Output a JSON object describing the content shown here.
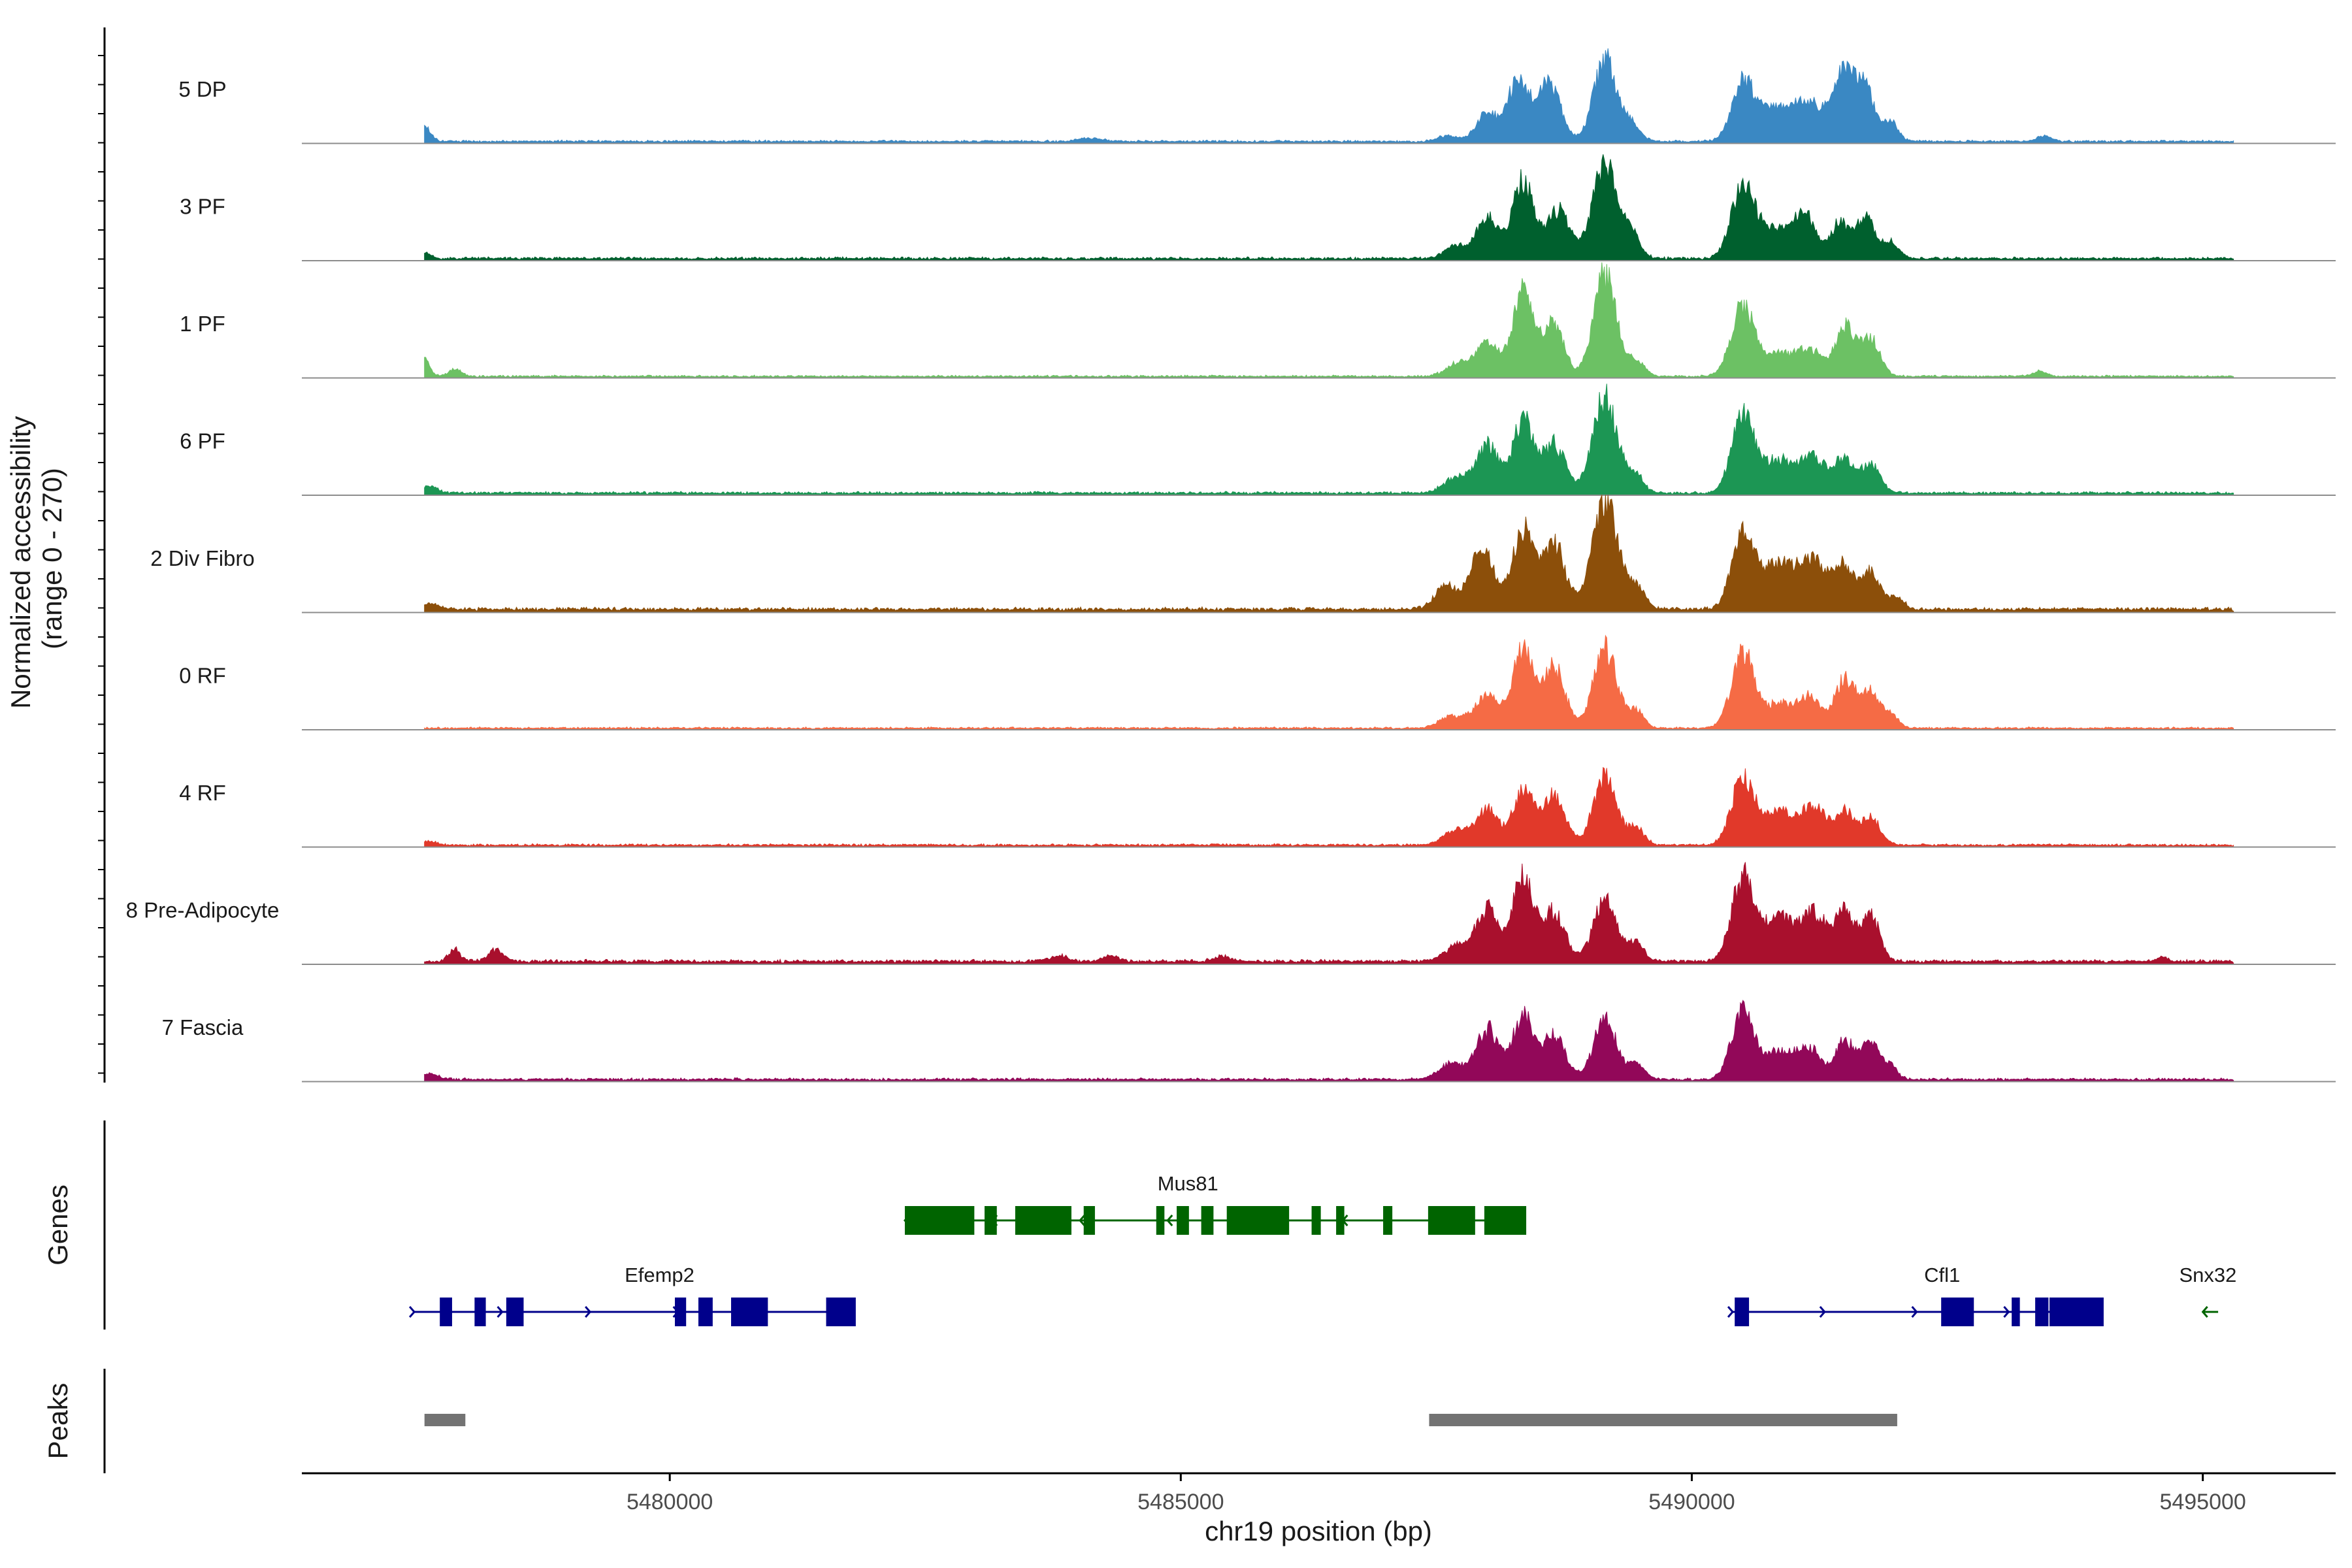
{
  "chart_data": {
    "type": "area",
    "title": "",
    "xlabel": "chr19 position (bp)",
    "ylabel": "Normalized accessibility\n(range 0 - 270)",
    "ylabel_lines": [
      "Normalized accessibility",
      "(range 0 - 270)"
    ],
    "ylim": [
      0,
      270
    ],
    "xlim": [
      5476400,
      5496300
    ],
    "xticks": [
      5480000,
      5485000,
      5490000,
      5495000
    ],
    "xtick_labels": [
      "5480000",
      "5485000",
      "5490000",
      "5495000"
    ],
    "series": [
      {
        "name": "5 DP",
        "color": "#3A88C3",
        "base": 4,
        "noise": [
          5477600,
          5495300
        ],
        "noise_amp": 3,
        "peaks": [
          [
            5477600,
            38,
            60
          ],
          [
            5484100,
            8,
            120
          ],
          [
            5487600,
            14,
            90
          ],
          [
            5488000,
            70,
            110
          ],
          [
            5488300,
            150,
            100
          ],
          [
            5488600,
            145,
            110
          ],
          [
            5489150,
            200,
            110
          ],
          [
            5489400,
            45,
            90
          ],
          [
            5490500,
            140,
            110
          ],
          [
            5490800,
            75,
            160
          ],
          [
            5491150,
            90,
            160
          ],
          [
            5491500,
            160,
            110
          ],
          [
            5491700,
            120,
            90
          ],
          [
            5491950,
            50,
            70
          ],
          [
            5493450,
            14,
            70
          ]
        ]
      },
      {
        "name": "3 PF",
        "color": "#00602E",
        "base": 4,
        "noise": [
          5477600,
          5495300
        ],
        "noise_amp": 4,
        "peaks": [
          [
            5477600,
            14,
            60
          ],
          [
            5487700,
            30,
            110
          ],
          [
            5488000,
            105,
            100
          ],
          [
            5488350,
            190,
            110
          ],
          [
            5488700,
            120,
            110
          ],
          [
            5489150,
            230,
            120
          ],
          [
            5489400,
            60,
            90
          ],
          [
            5490500,
            185,
            110
          ],
          [
            5490800,
            70,
            140
          ],
          [
            5491100,
            110,
            110
          ],
          [
            5491450,
            90,
            90
          ],
          [
            5491700,
            100,
            90
          ],
          [
            5491950,
            40,
            80
          ]
        ]
      },
      {
        "name": "1 PF",
        "color": "#6CC164",
        "base": 3,
        "noise": [
          5477600,
          5495300
        ],
        "noise_amp": 3,
        "peaks": [
          [
            5477600,
            42,
            50
          ],
          [
            5477900,
            18,
            60
          ],
          [
            5487700,
            30,
            110
          ],
          [
            5488000,
            80,
            120
          ],
          [
            5488350,
            210,
            100
          ],
          [
            5488650,
            130,
            100
          ],
          [
            5489150,
            250,
            110
          ],
          [
            5489450,
            40,
            80
          ],
          [
            5490500,
            180,
            110
          ],
          [
            5490850,
            55,
            130
          ],
          [
            5491150,
            65,
            120
          ],
          [
            5491500,
            120,
            100
          ],
          [
            5491750,
            90,
            90
          ],
          [
            5493400,
            12,
            70
          ]
        ]
      },
      {
        "name": "6 PF",
        "color": "#1C9654",
        "base": 4,
        "noise": [
          5477600,
          5495300
        ],
        "noise_amp": 4,
        "peaks": [
          [
            5477650,
            18,
            80
          ],
          [
            5487700,
            38,
            120
          ],
          [
            5488000,
            120,
            110
          ],
          [
            5488350,
            180,
            100
          ],
          [
            5488650,
            120,
            110
          ],
          [
            5489150,
            235,
            120
          ],
          [
            5489450,
            45,
            80
          ],
          [
            5490500,
            185,
            110
          ],
          [
            5490850,
            80,
            160
          ],
          [
            5491200,
            85,
            130
          ],
          [
            5491500,
            80,
            90
          ],
          [
            5491750,
            70,
            90
          ]
        ]
      },
      {
        "name": "2 Div Fibro",
        "color": "#8C4F0A",
        "base": 7,
        "noise": [
          5477600,
          5495300
        ],
        "noise_amp": 4,
        "peaks": [
          [
            5477650,
            14,
            80
          ],
          [
            5487600,
            60,
            110
          ],
          [
            5487950,
            155,
            110
          ],
          [
            5488350,
            190,
            110
          ],
          [
            5488650,
            160,
            110
          ],
          [
            5489150,
            270,
            120
          ],
          [
            5489450,
            55,
            90
          ],
          [
            5490500,
            180,
            110
          ],
          [
            5490850,
            110,
            160
          ],
          [
            5491200,
            115,
            140
          ],
          [
            5491500,
            100,
            90
          ],
          [
            5491750,
            95,
            90
          ],
          [
            5492000,
            30,
            70
          ]
        ]
      },
      {
        "name": "0 RF",
        "color": "#F56B45",
        "base": 3,
        "noise": [
          5477600,
          5495300
        ],
        "noise_amp": 3,
        "peaks": [
          [
            5487650,
            30,
            120
          ],
          [
            5488000,
            80,
            120
          ],
          [
            5488350,
            190,
            100
          ],
          [
            5488650,
            150,
            110
          ],
          [
            5489150,
            200,
            110
          ],
          [
            5489450,
            45,
            80
          ],
          [
            5490500,
            190,
            110
          ],
          [
            5490850,
            60,
            130
          ],
          [
            5491150,
            75,
            110
          ],
          [
            5491500,
            120,
            100
          ],
          [
            5491750,
            90,
            90
          ],
          [
            5491950,
            30,
            70
          ]
        ]
      },
      {
        "name": "4 RF",
        "color": "#E1392A",
        "base": 4,
        "noise": [
          5477600,
          5495300
        ],
        "noise_amp": 3,
        "peaks": [
          [
            5477650,
            10,
            70
          ],
          [
            5487700,
            38,
            120
          ],
          [
            5488000,
            85,
            110
          ],
          [
            5488350,
            135,
            100
          ],
          [
            5488650,
            120,
            110
          ],
          [
            5489150,
            170,
            110
          ],
          [
            5489450,
            45,
            80
          ],
          [
            5490500,
            165,
            110
          ],
          [
            5490850,
            80,
            150
          ],
          [
            5491200,
            90,
            130
          ],
          [
            5491500,
            80,
            90
          ],
          [
            5491750,
            70,
            90
          ]
        ]
      },
      {
        "name": "8 Pre-Adipocyte",
        "color": "#A9102D",
        "base": 6,
        "noise": [
          5477600,
          5495300
        ],
        "noise_amp": 4,
        "peaks": [
          [
            5477900,
            28,
            60
          ],
          [
            5478300,
            28,
            70
          ],
          [
            5483800,
            14,
            80
          ],
          [
            5484300,
            14,
            80
          ],
          [
            5485400,
            12,
            80
          ],
          [
            5487700,
            40,
            120
          ],
          [
            5488000,
            130,
            110
          ],
          [
            5488350,
            210,
            100
          ],
          [
            5488650,
            120,
            110
          ],
          [
            5489150,
            155,
            110
          ],
          [
            5489450,
            45,
            80
          ],
          [
            5490500,
            205,
            110
          ],
          [
            5490850,
            110,
            150
          ],
          [
            5491200,
            115,
            130
          ],
          [
            5491500,
            120,
            90
          ],
          [
            5491750,
            110,
            90
          ],
          [
            5494600,
            12,
            50
          ]
        ]
      },
      {
        "name": "7 Fascia",
        "color": "#920859",
        "base": 4,
        "noise": [
          5477600,
          5495300
        ],
        "noise_amp": 4,
        "peaks": [
          [
            5477650,
            14,
            80
          ],
          [
            5487650,
            40,
            120
          ],
          [
            5488000,
            125,
            110
          ],
          [
            5488350,
            160,
            100
          ],
          [
            5488650,
            110,
            110
          ],
          [
            5489150,
            145,
            110
          ],
          [
            5489450,
            40,
            80
          ],
          [
            5490500,
            165,
            110
          ],
          [
            5490850,
            65,
            140
          ],
          [
            5491150,
            75,
            120
          ],
          [
            5491500,
            95,
            90
          ],
          [
            5491750,
            90,
            90
          ],
          [
            5491950,
            30,
            70
          ]
        ]
      }
    ],
    "genes": [
      {
        "name": "Mus81",
        "strand": "-",
        "color": "#006400",
        "row": 1,
        "start": 5482300,
        "end": 5488300,
        "exons": [
          [
            5482300,
            5482980
          ],
          [
            5483080,
            5483200
          ],
          [
            5483380,
            5483930
          ],
          [
            5484050,
            5484160
          ],
          [
            5484760,
            5484840
          ],
          [
            5484960,
            5485080
          ],
          [
            5485200,
            5485320
          ],
          [
            5485450,
            5486060
          ],
          [
            5486280,
            5486370
          ],
          [
            5486520,
            5486600
          ],
          [
            5486980,
            5487070
          ],
          [
            5487420,
            5487880
          ],
          [
            5487970,
            5488380
          ]
        ]
      },
      {
        "name": "Efemp2",
        "strand": "+",
        "color": "#00008B",
        "row": 2,
        "start": 5477500,
        "end": 5481800,
        "exons": [
          [
            5477750,
            5477870
          ],
          [
            5478090,
            5478200
          ],
          [
            5478400,
            5478570
          ],
          [
            5480050,
            5480160
          ],
          [
            5480280,
            5480420
          ],
          [
            5480600,
            5480960
          ],
          [
            5481530,
            5481820
          ]
        ]
      },
      {
        "name": "Cfl1",
        "strand": "+",
        "color": "#00008B",
        "row": 2,
        "start": 5490400,
        "end": 5494000,
        "exons": [
          [
            5490420,
            5490560
          ],
          [
            5492440,
            5492760
          ],
          [
            5493130,
            5493210
          ],
          [
            5493360,
            5493490
          ],
          [
            5493500,
            5494030
          ]
        ]
      },
      {
        "name": "Snx32",
        "strand": "-",
        "color": "#006400",
        "row": 2,
        "start": 5495000,
        "end": 5495150,
        "exons": []
      }
    ],
    "peaks_track": [
      [
        5477600,
        5478000
      ],
      [
        5487430,
        5492010
      ]
    ],
    "panels": [
      "Genes",
      "Peaks"
    ]
  }
}
